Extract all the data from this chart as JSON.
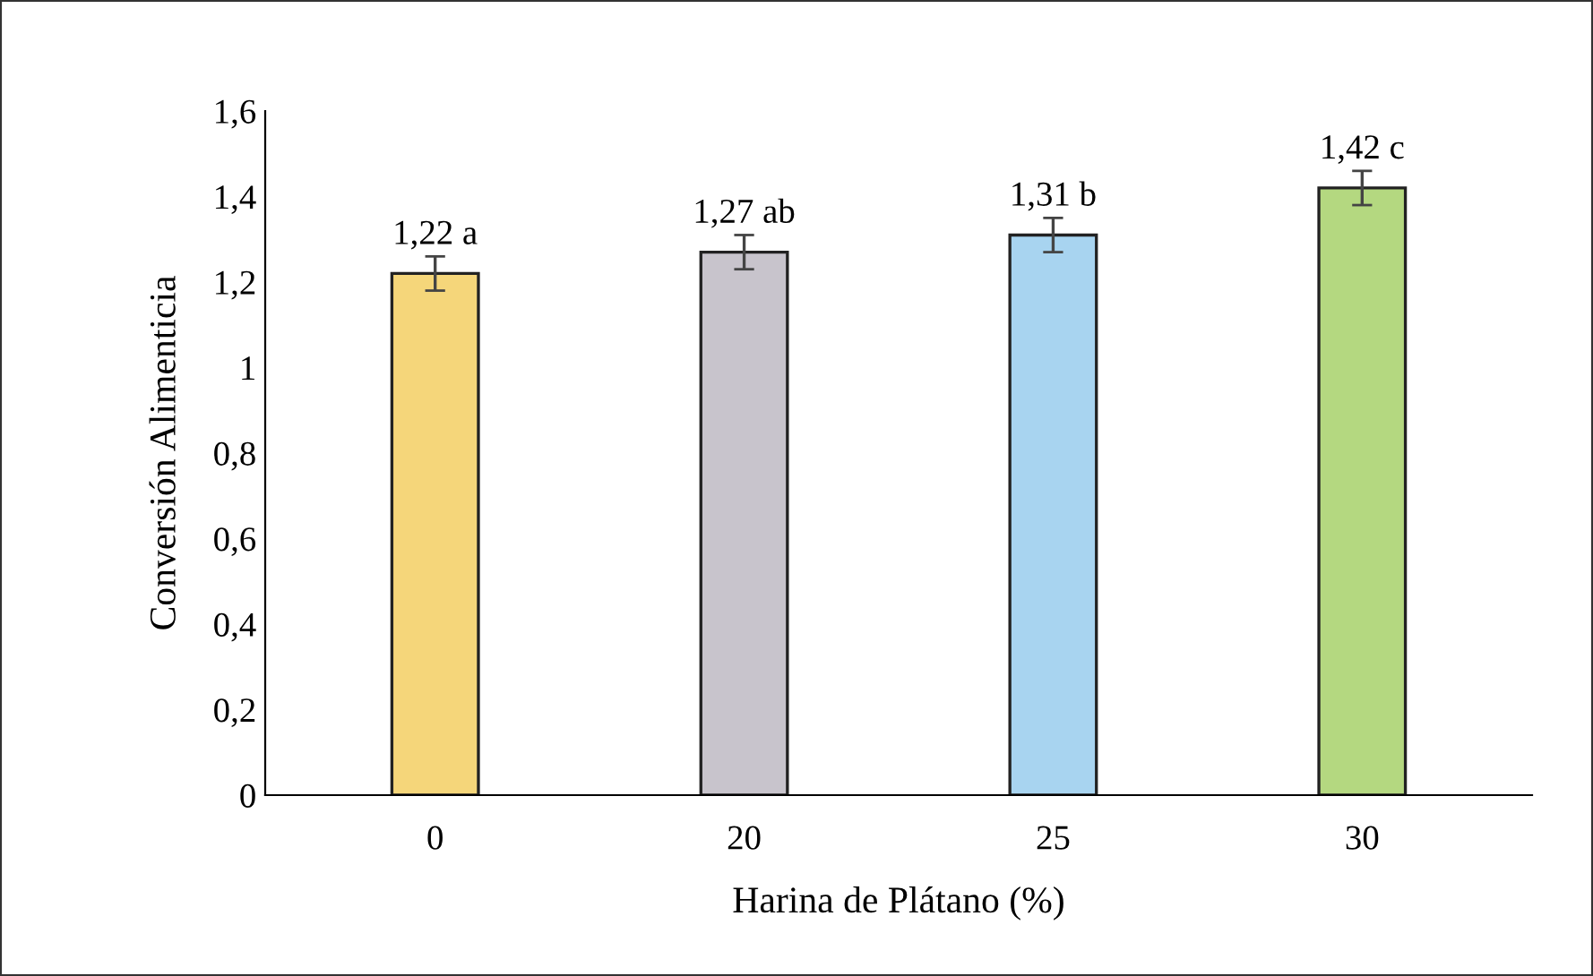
{
  "chart_data": {
    "type": "bar",
    "xlabel": "Harina de Plátano (%)",
    "ylabel": "Conversión Alimenticia",
    "categories": [
      "0",
      "20",
      "25",
      "30"
    ],
    "values": [
      1.22,
      1.27,
      1.31,
      1.42
    ],
    "errors": [
      0.04,
      0.04,
      0.04,
      0.04
    ],
    "value_labels": [
      "1,22 a",
      "1,27 ab",
      "1,31 b",
      "1,42 c"
    ],
    "colors": [
      "#f5d67a",
      "#c8c4cc",
      "#a8d4f0",
      "#b4d880"
    ],
    "ylim": [
      0,
      1.6
    ],
    "yticks": [
      0,
      {
        "value": 0.2,
        "label": "0,2"
      },
      {
        "value": 0.4,
        "label": "0,4"
      },
      {
        "value": 0.6,
        "label": "0,6"
      },
      {
        "value": 0.8,
        "label": "0,8"
      },
      1,
      {
        "value": 1.2,
        "label": "1,2"
      },
      {
        "value": 1.4,
        "label": "1,4"
      },
      {
        "value": 1.6,
        "label": "1,6"
      }
    ],
    "grid": false,
    "legend": false
  }
}
